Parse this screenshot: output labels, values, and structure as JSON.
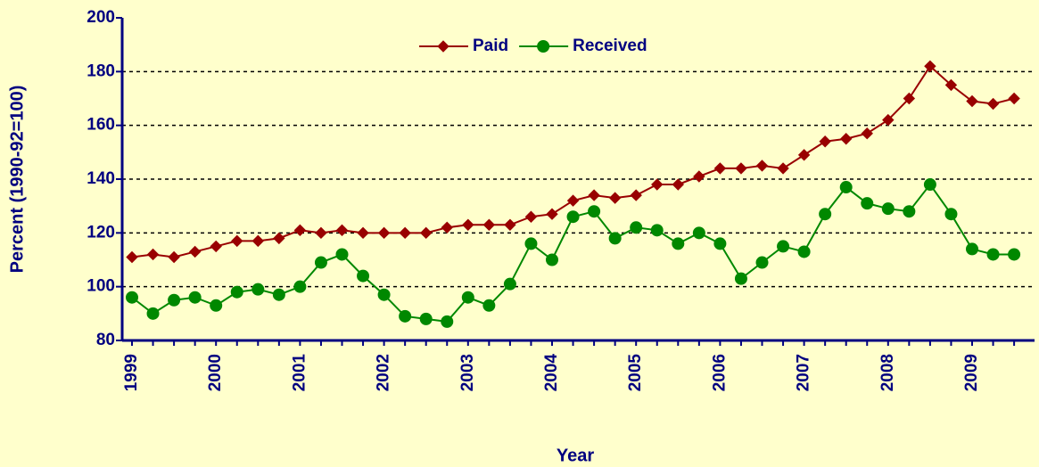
{
  "chart_data": {
    "type": "line",
    "xlabel": "Year",
    "ylabel": "Percent (1990-92=100)",
    "categories": [
      "1999",
      null,
      null,
      null,
      "2000",
      null,
      null,
      null,
      "2001",
      null,
      null,
      null,
      "2002",
      null,
      null,
      null,
      "2003",
      null,
      null,
      null,
      "2004",
      null,
      null,
      null,
      "2005",
      null,
      null,
      null,
      "2006",
      null,
      null,
      null,
      "2007",
      null,
      null,
      null,
      "2008",
      null,
      null,
      null,
      "2009",
      null,
      null
    ],
    "series": [
      {
        "name": "Paid",
        "color": "#990000",
        "marker": "diamond",
        "values": [
          111,
          112,
          111,
          113,
          115,
          117,
          117,
          118,
          121,
          120,
          121,
          120,
          120,
          120,
          120,
          122,
          123,
          123,
          123,
          126,
          127,
          132,
          134,
          133,
          134,
          138,
          138,
          141,
          144,
          144,
          145,
          144,
          149,
          154,
          155,
          157,
          162,
          170,
          182,
          175,
          169,
          168,
          170
        ]
      },
      {
        "name": "Received",
        "color": "#008800",
        "marker": "circle",
        "values": [
          96,
          90,
          95,
          96,
          93,
          98,
          99,
          97,
          100,
          109,
          112,
          104,
          97,
          89,
          88,
          87,
          96,
          93,
          101,
          116,
          110,
          126,
          128,
          118,
          122,
          121,
          116,
          120,
          116,
          103,
          109,
          115,
          113,
          127,
          137,
          131,
          129,
          128,
          138,
          127,
          114,
          112,
          112
        ]
      }
    ],
    "ylim": [
      80,
      200
    ],
    "yticks": [
      80,
      100,
      120,
      140,
      160,
      180,
      200
    ],
    "grid": true,
    "legend": "top"
  }
}
